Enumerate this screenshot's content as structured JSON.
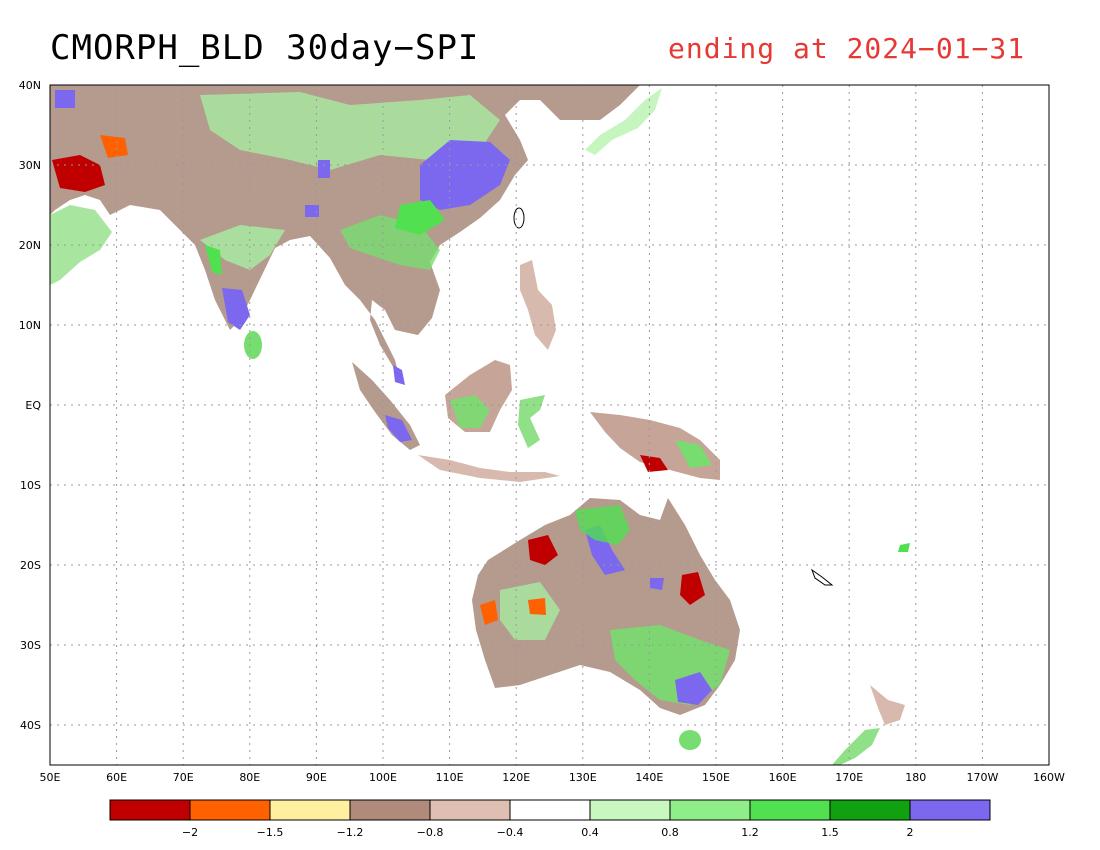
{
  "title": "CMORPH_BLD 30day−SPI",
  "subtitle": "ending at 2024−01−31",
  "map": {
    "lon_labels": [
      "50E",
      "60E",
      "70E",
      "80E",
      "90E",
      "100E",
      "110E",
      "120E",
      "130E",
      "140E",
      "150E",
      "160E",
      "170E",
      "180",
      "170W",
      "160W"
    ],
    "lat_labels": [
      "40N",
      "30N",
      "20N",
      "10N",
      "EQ",
      "10S",
      "20S",
      "30S",
      "40S"
    ]
  },
  "legend": {
    "colors": [
      "#c00000",
      "#ff6000",
      "#fff0a0",
      "#b08a7a",
      "#e0bfb3",
      "#ffffff",
      "#c8f8c0",
      "#90ee88",
      "#50e050",
      "#10a010",
      "#7b68ee"
    ],
    "labels": [
      "−2",
      "−1.5",
      "−1.2",
      "−0.8",
      "−0.4",
      "0.4",
      "0.8",
      "1.2",
      "1.5",
      "2"
    ]
  }
}
